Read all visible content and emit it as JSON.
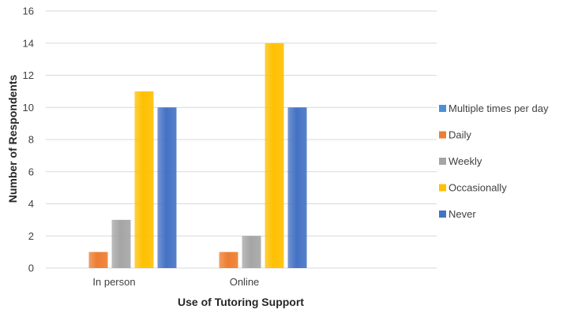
{
  "chart_data": {
    "type": "bar",
    "title": "",
    "xlabel": "Use of Tutoring Support",
    "ylabel": "Number of Respondents",
    "ylim": [
      0,
      16
    ],
    "yticks": [
      0,
      2,
      4,
      6,
      8,
      10,
      12,
      14,
      16
    ],
    "grid": true,
    "legend_position": "right",
    "categories": [
      "In person",
      "Online"
    ],
    "series": [
      {
        "name": "Multiple times per day",
        "color": "#4a90d9",
        "values": [
          0,
          0
        ]
      },
      {
        "name": "Daily",
        "color": "#ed7d31",
        "values": [
          1,
          1
        ]
      },
      {
        "name": "Weekly",
        "color": "#a5a5a5",
        "values": [
          3,
          2
        ]
      },
      {
        "name": "Occasionally",
        "color": "#ffc000",
        "values": [
          11,
          14
        ]
      },
      {
        "name": "Never",
        "color": "#4472c4",
        "values": [
          10,
          10
        ]
      }
    ]
  }
}
